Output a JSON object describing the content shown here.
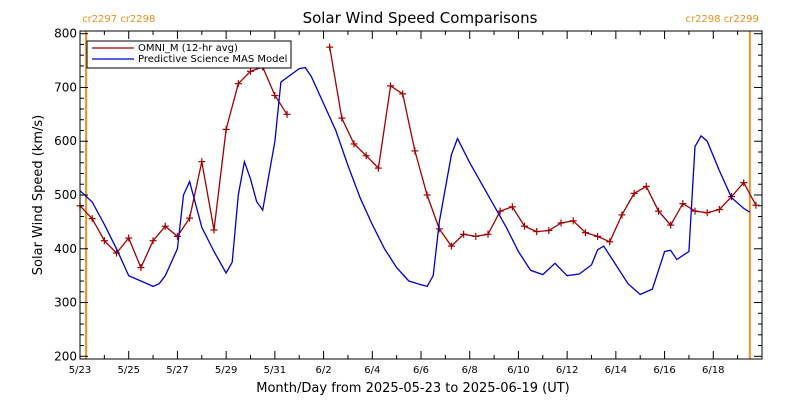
{
  "colors": {
    "omni": "#a00000",
    "model": "#0000c8",
    "boundary": "#f0901e",
    "axis": "#000000"
  },
  "chart_data": {
    "type": "line",
    "title": "Solar Wind Speed Comparisons",
    "xlabel": "Month/Day from 2025-05-23 to 2025-06-19 (UT)",
    "ylabel": "Solar Wind Speed (km/s)",
    "xlim": [
      "2025-05-23",
      "2025-06-20"
    ],
    "ylim": [
      195,
      805
    ],
    "yticks": [
      200,
      300,
      400,
      500,
      600,
      700,
      800
    ],
    "xticks": [
      {
        "date": "2025-05-23",
        "label": "5/23"
      },
      {
        "date": "2025-05-25",
        "label": "5/25"
      },
      {
        "date": "2025-05-27",
        "label": "5/27"
      },
      {
        "date": "2025-05-29",
        "label": "5/29"
      },
      {
        "date": "2025-05-31",
        "label": "5/31"
      },
      {
        "date": "2025-06-02",
        "label": "6/2"
      },
      {
        "date": "2025-06-04",
        "label": "6/4"
      },
      {
        "date": "2025-06-06",
        "label": "6/6"
      },
      {
        "date": "2025-06-08",
        "label": "6/8"
      },
      {
        "date": "2025-06-10",
        "label": "6/10"
      },
      {
        "date": "2025-06-12",
        "label": "6/12"
      },
      {
        "date": "2025-06-14",
        "label": "6/14"
      },
      {
        "date": "2025-06-16",
        "label": "6/16"
      },
      {
        "date": "2025-06-18",
        "label": "6/18"
      }
    ],
    "legend": {
      "placement": "top-left"
    },
    "carrington_boundaries": [
      {
        "date": "2025-05-23 06:00",
        "labels": [
          "cr2297",
          "cr2298"
        ],
        "side": "left"
      },
      {
        "date": "2025-06-19 12:00",
        "labels": [
          "cr2298",
          "cr2299"
        ],
        "side": "right"
      }
    ],
    "series": [
      {
        "name": "OMNI_M (12-hr avg)",
        "marker": "plus",
        "segments": [
          [
            [
              "2025-05-23 00:00",
              480
            ],
            [
              "2025-05-23 12:00",
              456
            ],
            [
              "2025-05-24 00:00",
              415
            ],
            [
              "2025-05-24 12:00",
              392
            ],
            [
              "2025-05-25 00:00",
              420
            ],
            [
              "2025-05-25 12:00",
              365
            ],
            [
              "2025-05-26 00:00",
              415
            ],
            [
              "2025-05-26 12:00",
              442
            ],
            [
              "2025-05-27 00:00",
              423
            ],
            [
              "2025-05-27 12:00",
              457
            ],
            [
              "2025-05-28 00:00",
              562
            ],
            [
              "2025-05-28 12:00",
              435
            ],
            [
              "2025-05-29 00:00",
              622
            ],
            [
              "2025-05-29 12:00",
              707
            ],
            [
              "2025-05-30 00:00",
              730
            ],
            [
              "2025-05-30 12:00",
              738
            ],
            [
              "2025-05-31 00:00",
              685
            ],
            [
              "2025-05-31 12:00",
              650
            ]
          ],
          [
            [
              "2025-06-02 06:00",
              775
            ],
            [
              "2025-06-02 18:00",
              643
            ],
            [
              "2025-06-03 06:00",
              595
            ],
            [
              "2025-06-03 18:00",
              573
            ],
            [
              "2025-06-04 06:00",
              550
            ],
            [
              "2025-06-04 18:00",
              703
            ],
            [
              "2025-06-05 06:00",
              688
            ],
            [
              "2025-06-05 18:00",
              582
            ],
            [
              "2025-06-06 06:00",
              500
            ],
            [
              "2025-06-06 18:00",
              437
            ],
            [
              "2025-06-07 06:00",
              405
            ],
            [
              "2025-06-07 18:00",
              427
            ],
            [
              "2025-06-08 06:00",
              423
            ],
            [
              "2025-06-08 18:00",
              427
            ],
            [
              "2025-06-09 06:00",
              470
            ],
            [
              "2025-06-09 18:00",
              478
            ],
            [
              "2025-06-10 06:00",
              442
            ],
            [
              "2025-06-10 18:00",
              432
            ],
            [
              "2025-06-11 06:00",
              434
            ],
            [
              "2025-06-11 18:00",
              448
            ],
            [
              "2025-06-12 06:00",
              452
            ],
            [
              "2025-06-12 18:00",
              430
            ],
            [
              "2025-06-13 06:00",
              423
            ],
            [
              "2025-06-13 18:00",
              413
            ],
            [
              "2025-06-14 06:00",
              463
            ],
            [
              "2025-06-14 18:00",
              503
            ],
            [
              "2025-06-15 06:00",
              516
            ],
            [
              "2025-06-15 18:00",
              470
            ],
            [
              "2025-06-16 06:00",
              444
            ],
            [
              "2025-06-16 18:00",
              484
            ],
            [
              "2025-06-17 06:00",
              470
            ],
            [
              "2025-06-17 18:00",
              467
            ],
            [
              "2025-06-18 06:00",
              473
            ],
            [
              "2025-06-18 18:00",
              497
            ],
            [
              "2025-06-19 06:00",
              523
            ],
            [
              "2025-06-19 18:00",
              481
            ]
          ]
        ]
      },
      {
        "name": "Predictive Science MAS Model",
        "marker": "none",
        "segments": [
          [
            [
              "2025-05-23 00:00",
              508
            ],
            [
              "2025-05-23 12:00",
              487
            ],
            [
              "2025-05-24 00:00",
              445
            ],
            [
              "2025-05-24 12:00",
              400
            ],
            [
              "2025-05-25 00:00",
              350
            ],
            [
              "2025-05-25 12:00",
              340
            ],
            [
              "2025-05-26 00:00",
              330
            ],
            [
              "2025-05-26 06:00",
              335
            ],
            [
              "2025-05-26 12:00",
              350
            ],
            [
              "2025-05-27 00:00",
              400
            ],
            [
              "2025-05-27 06:00",
              500
            ],
            [
              "2025-05-27 12:00",
              525
            ],
            [
              "2025-05-28 00:00",
              440
            ],
            [
              "2025-05-28 12:00",
              395
            ],
            [
              "2025-05-29 00:00",
              355
            ],
            [
              "2025-05-29 06:00",
              375
            ],
            [
              "2025-05-29 12:00",
              500
            ],
            [
              "2025-05-29 18:00",
              562
            ],
            [
              "2025-05-30 00:00",
              530
            ],
            [
              "2025-05-30 06:00",
              488
            ],
            [
              "2025-05-30 12:00",
              472
            ],
            [
              "2025-05-31 00:00",
              600
            ],
            [
              "2025-05-31 06:00",
              710
            ],
            [
              "2025-06-01 00:00",
              735
            ],
            [
              "2025-06-01 06:00",
              737
            ],
            [
              "2025-06-01 12:00",
              720
            ],
            [
              "2025-06-02 00:00",
              670
            ],
            [
              "2025-06-02 12:00",
              620
            ],
            [
              "2025-06-03 00:00",
              555
            ],
            [
              "2025-06-03 12:00",
              495
            ],
            [
              "2025-06-04 00:00",
              445
            ],
            [
              "2025-06-04 12:00",
              400
            ],
            [
              "2025-06-05 00:00",
              365
            ],
            [
              "2025-06-05 12:00",
              340
            ],
            [
              "2025-06-06 00:00",
              333
            ],
            [
              "2025-06-06 06:00",
              330
            ],
            [
              "2025-06-06 12:00",
              350
            ],
            [
              "2025-06-06 18:00",
              450
            ],
            [
              "2025-06-07 06:00",
              575
            ],
            [
              "2025-06-07 12:00",
              605
            ],
            [
              "2025-06-08 00:00",
              560
            ],
            [
              "2025-06-08 12:00",
              520
            ],
            [
              "2025-06-09 00:00",
              480
            ],
            [
              "2025-06-09 12:00",
              440
            ],
            [
              "2025-06-10 00:00",
              395
            ],
            [
              "2025-06-10 12:00",
              360
            ],
            [
              "2025-06-11 00:00",
              352
            ],
            [
              "2025-06-11 12:00",
              373
            ],
            [
              "2025-06-12 00:00",
              350
            ],
            [
              "2025-06-12 12:00",
              353
            ],
            [
              "2025-06-13 00:00",
              370
            ],
            [
              "2025-06-13 06:00",
              398
            ],
            [
              "2025-06-13 12:00",
              405
            ],
            [
              "2025-06-14 00:00",
              370
            ],
            [
              "2025-06-14 12:00",
              335
            ],
            [
              "2025-06-15 00:00",
              315
            ],
            [
              "2025-06-15 12:00",
              325
            ],
            [
              "2025-06-16 00:00",
              395
            ],
            [
              "2025-06-16 06:00",
              397
            ],
            [
              "2025-06-16 12:00",
              380
            ],
            [
              "2025-06-17 00:00",
              395
            ],
            [
              "2025-06-17 06:00",
              590
            ],
            [
              "2025-06-17 12:00",
              610
            ],
            [
              "2025-06-17 18:00",
              600
            ],
            [
              "2025-06-18 06:00",
              545
            ],
            [
              "2025-06-18 18:00",
              495
            ],
            [
              "2025-06-19 06:00",
              475
            ],
            [
              "2025-06-19 12:00",
              468
            ]
          ]
        ]
      }
    ]
  }
}
